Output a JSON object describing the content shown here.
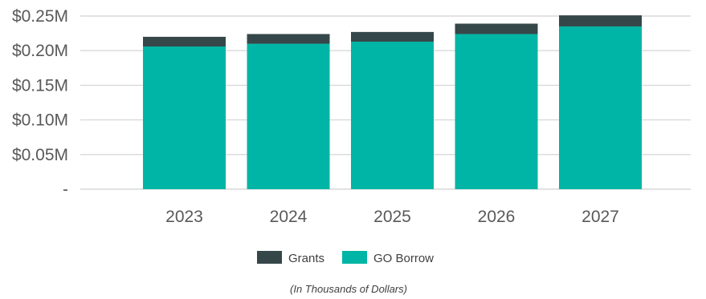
{
  "chart_data": {
    "type": "bar",
    "stacked": true,
    "categories": [
      "2023",
      "2024",
      "2025",
      "2026",
      "2027"
    ],
    "series": [
      {
        "name": "GO Borrow",
        "color": "#00b5a5",
        "values": [
          0.206,
          0.21,
          0.213,
          0.224,
          0.235
        ]
      },
      {
        "name": "Grants",
        "color": "#36474a",
        "values": [
          0.014,
          0.014,
          0.014,
          0.015,
          0.016
        ]
      }
    ],
    "yticks": [
      {
        "value": 0,
        "label": "-"
      },
      {
        "value": 0.05,
        "label": "$0.05M"
      },
      {
        "value": 0.1,
        "label": "$0.10M"
      },
      {
        "value": 0.15,
        "label": "$0.15M"
      },
      {
        "value": 0.2,
        "label": "$0.20M"
      },
      {
        "value": 0.25,
        "label": "$0.25M"
      }
    ],
    "ylim": [
      0,
      0.25
    ],
    "grid": true,
    "legend_position": "bottom",
    "legend_order": [
      "Grants",
      "GO Borrow"
    ],
    "note": "(In Thousands of Dollars)"
  }
}
